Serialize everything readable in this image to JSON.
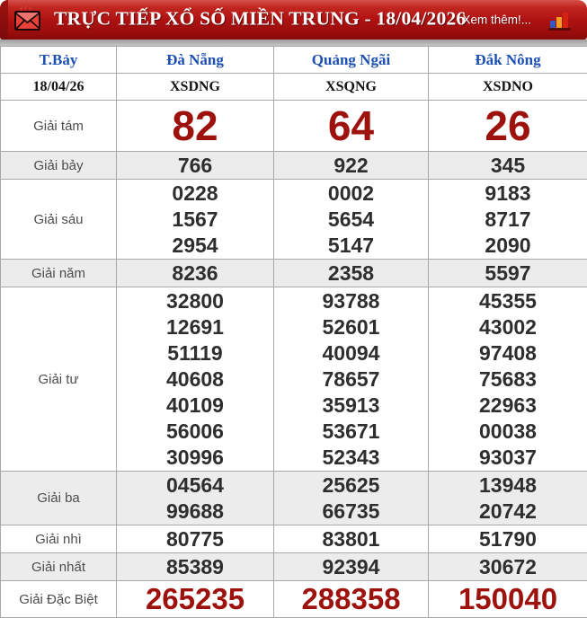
{
  "header": {
    "title": "TRỰC TIẾP XỔ SỐ MIỀN TRUNG - 18/04/2026",
    "more_label": "Xem thêm!...",
    "icons": {
      "left": "envelope-icon",
      "right": "bar-chart-icon"
    }
  },
  "table": {
    "columns": [
      "T.Bảy",
      "Đà Nẵng",
      "Quảng Ngãi",
      "Đắk Nông"
    ],
    "codes_row": {
      "date": "18/04/26",
      "codes": [
        "XSDNG",
        "XSQNG",
        "XSDNO"
      ]
    },
    "rows": [
      {
        "label": "Giải tám",
        "style": "big-red",
        "shade": false,
        "values": [
          [
            "82"
          ],
          [
            "64"
          ],
          [
            "26"
          ]
        ]
      },
      {
        "label": "Giải bảy",
        "style": "normal",
        "shade": true,
        "values": [
          [
            "766"
          ],
          [
            "922"
          ],
          [
            "345"
          ]
        ]
      },
      {
        "label": "Giải sáu",
        "style": "normal",
        "shade": false,
        "values": [
          [
            "0228",
            "1567",
            "2954"
          ],
          [
            "0002",
            "5654",
            "5147"
          ],
          [
            "9183",
            "8717",
            "2090"
          ]
        ]
      },
      {
        "label": "Giải năm",
        "style": "normal",
        "shade": true,
        "values": [
          [
            "8236"
          ],
          [
            "2358"
          ],
          [
            "5597"
          ]
        ]
      },
      {
        "label": "Giải tư",
        "style": "normal",
        "shade": false,
        "values": [
          [
            "32800",
            "12691",
            "51119",
            "40608",
            "40109",
            "56006",
            "30996"
          ],
          [
            "93788",
            "52601",
            "40094",
            "78657",
            "35913",
            "53671",
            "52343"
          ],
          [
            "45355",
            "43002",
            "97408",
            "75683",
            "22963",
            "00038",
            "93037"
          ]
        ]
      },
      {
        "label": "Giải ba",
        "style": "normal",
        "shade": true,
        "values": [
          [
            "04564",
            "99688"
          ],
          [
            "25625",
            "66735"
          ],
          [
            "13948",
            "20742"
          ]
        ]
      },
      {
        "label": "Giải nhì",
        "style": "normal",
        "shade": false,
        "values": [
          [
            "80775"
          ],
          [
            "83801"
          ],
          [
            "51790"
          ]
        ]
      },
      {
        "label": "Giải nhất",
        "style": "normal",
        "shade": true,
        "values": [
          [
            "85389"
          ],
          [
            "92394"
          ],
          [
            "30672"
          ]
        ]
      },
      {
        "label": "Giải Đặc Biệt",
        "style": "special",
        "shade": false,
        "values": [
          [
            "265235"
          ],
          [
            "288358"
          ],
          [
            "150040"
          ]
        ]
      }
    ]
  },
  "colors": {
    "banner_red": "#b01212",
    "prize_red": "#9d120d",
    "header_blue": "#1d50b2",
    "shade_gray": "#ececec",
    "border_gray": "#a8a8a8",
    "footer_cream": "#f4eed8"
  }
}
